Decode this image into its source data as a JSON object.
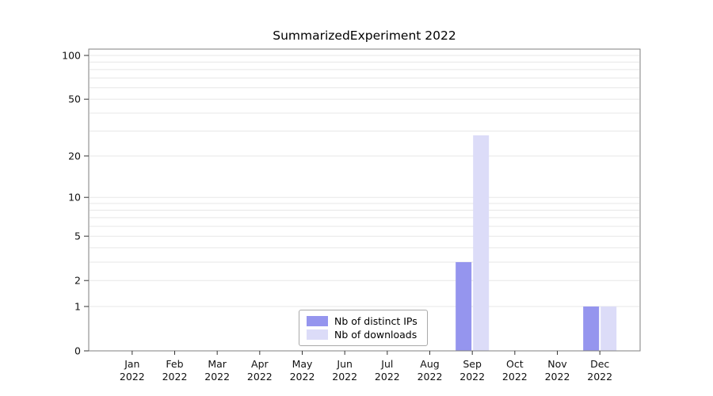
{
  "title": "SummarizedExperiment 2022",
  "chart_data": {
    "type": "bar",
    "title": "SummarizedExperiment 2022",
    "categories": [
      "Jan 2022",
      "Feb 2022",
      "Mar 2022",
      "Apr 2022",
      "May 2022",
      "Jun 2022",
      "Jul 2022",
      "Aug 2022",
      "Sep 2022",
      "Oct 2022",
      "Nov 2022",
      "Dec 2022"
    ],
    "series": [
      {
        "name": "Nb of distinct IPs",
        "color": "#9595ee",
        "values": [
          0,
          0,
          0,
          0,
          0,
          0,
          0,
          0,
          3,
          0,
          0,
          1
        ]
      },
      {
        "name": "Nb of downloads",
        "color": "#dcdcf8",
        "values": [
          0,
          0,
          0,
          0,
          0,
          0,
          0,
          0,
          28,
          0,
          0,
          1
        ]
      }
    ],
    "y_ticks": [
      0,
      1,
      2,
      5,
      10,
      20,
      50,
      100
    ],
    "y_scale": "log1p",
    "ylim": [
      0,
      100
    ],
    "xlabel": "",
    "ylabel": "",
    "grid": "horizontal-minor",
    "gridline_color": "#e7e7e7",
    "frame_color": "#7f7f7f",
    "legend_position": "bottom-center-inside"
  }
}
